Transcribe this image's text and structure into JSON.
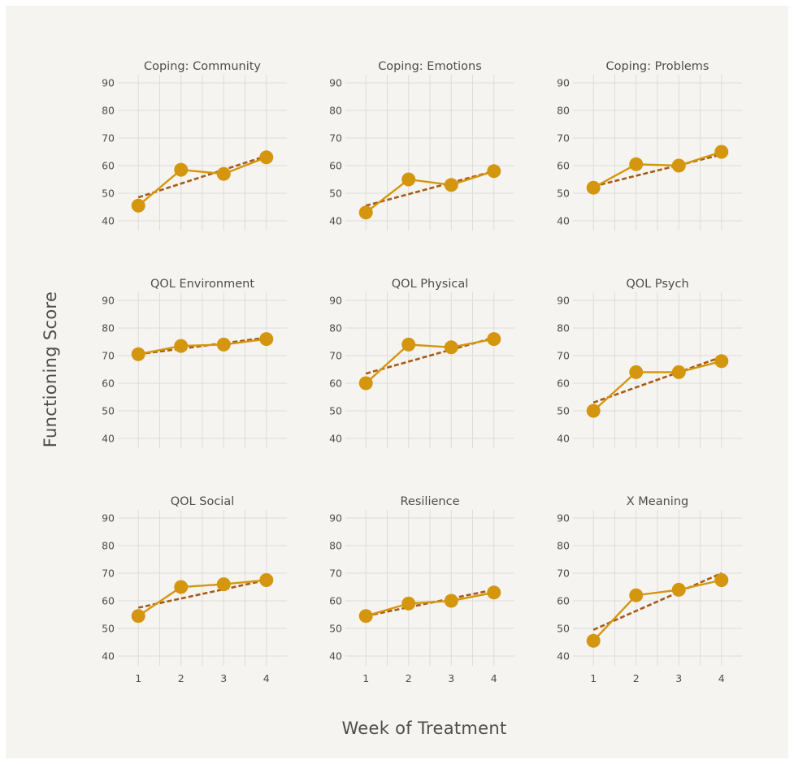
{
  "chart_data": {
    "type": "line",
    "ylabel": "Functioning Score",
    "xlabel": "Week of Treatment",
    "x": [
      1,
      2,
      3,
      4
    ],
    "ylim": [
      40,
      90
    ],
    "yticks": [
      40,
      50,
      60,
      70,
      80,
      90
    ],
    "xticks": [
      1,
      2,
      3,
      4
    ],
    "grid": true,
    "colors": {
      "observed": "#d4960f",
      "trend": "#a85a15",
      "grid": "#dcdcdc",
      "text": "#4d4d4d"
    },
    "panels": [
      {
        "title": "Coping: Community",
        "values": [
          45.5,
          58.5,
          57,
          63
        ],
        "trend": [
          48.5,
          63.5
        ]
      },
      {
        "title": "Coping: Emotions",
        "values": [
          43,
          55,
          53,
          58
        ],
        "trend": [
          45.5,
          58
        ]
      },
      {
        "title": "Coping: Problems",
        "values": [
          52,
          60.5,
          60,
          65
        ],
        "trend": [
          52.5,
          64
        ]
      },
      {
        "title": "QOL Environment",
        "values": [
          70.5,
          73.5,
          74,
          76
        ],
        "trend": [
          70.5,
          76.5
        ]
      },
      {
        "title": "QOL Physical",
        "values": [
          60,
          74,
          73,
          76
        ],
        "trend": [
          63.5,
          76.5
        ]
      },
      {
        "title": "QOL Psych",
        "values": [
          50,
          64,
          64,
          68
        ],
        "trend": [
          53,
          69.5
        ]
      },
      {
        "title": "QOL Social",
        "values": [
          54.5,
          65,
          66,
          67.5
        ],
        "trend": [
          57.5,
          67.5
        ]
      },
      {
        "title": "Resilience",
        "values": [
          54.5,
          59,
          60,
          63
        ],
        "trend": [
          54.5,
          64
        ]
      },
      {
        "title": "X Meaning",
        "values": [
          45.5,
          62,
          64,
          67.5
        ],
        "trend": [
          49.5,
          70
        ]
      }
    ]
  }
}
